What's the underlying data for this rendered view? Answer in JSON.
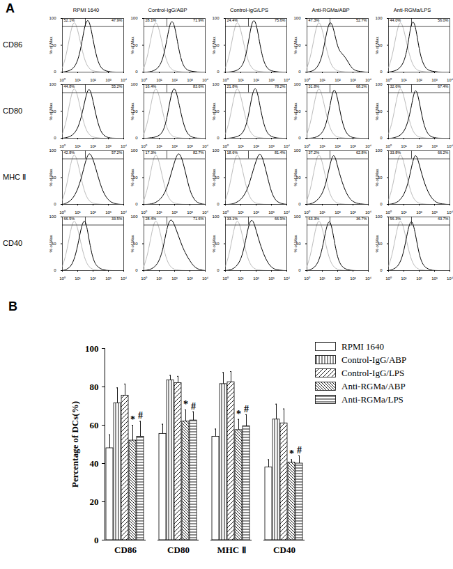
{
  "chart_data": [
    {
      "type": "histogram",
      "panel_label": "A",
      "columns": [
        "RPMI 1640",
        "Control-IgG/ABP",
        "Control-IgG/LPS",
        "Anti-RGMa/ABP",
        "Anti-RGMa/LPS"
      ],
      "x": [
        1,
        1.778,
        3.162,
        5.623,
        10,
        17.78,
        31.62,
        56.23,
        100,
        177.8,
        316.2,
        562.3,
        1000,
        1778,
        3162,
        5623,
        10000
      ],
      "log": "x",
      "xlim": [
        1,
        10000
      ],
      "xticks": [
        {
          "value": 1,
          "label": "10⁰"
        },
        {
          "value": 10,
          "label": "10¹"
        },
        {
          "value": 100,
          "label": "10²"
        },
        {
          "value": 1000,
          "label": "10³"
        },
        {
          "value": 10000,
          "label": "10⁴"
        }
      ],
      "ylim": [
        0,
        100
      ],
      "yticks": [
        0,
        50,
        100
      ],
      "y_label": "% of Max",
      "gate": {
        "x": 31.62,
        "y": 85
      },
      "control": [
        8,
        30,
        70,
        100,
        80,
        45,
        18,
        6,
        2,
        1,
        0,
        0,
        0,
        0,
        0,
        0,
        0
      ],
      "rows": [
        {
          "name": "CD86",
          "panels": [
            {
              "values": [
                0,
                1,
                3,
                8,
                20,
                50,
                95,
                100,
                60,
                25,
                8,
                3,
                1,
                0,
                0,
                0,
                0
              ],
              "percent": [
                52.1,
                47.9
              ],
              "percent_labels": [
                "52.1%",
                "47.9%"
              ]
            },
            {
              "values": [
                0,
                0,
                1,
                4,
                10,
                25,
                60,
                100,
                90,
                45,
                15,
                5,
                2,
                1,
                0,
                0,
                0
              ],
              "percent": [
                28.1,
                71.9
              ],
              "percent_labels": [
                "28.1%",
                "71.9%"
              ]
            },
            {
              "values": [
                0,
                0,
                1,
                3,
                8,
                20,
                55,
                100,
                95,
                50,
                18,
                6,
                2,
                1,
                0,
                0,
                0
              ],
              "percent": [
                24.4,
                75.6
              ],
              "percent_labels": [
                "24.4%",
                "75.6%"
              ]
            },
            {
              "values": [
                0,
                1,
                4,
                12,
                30,
                70,
                100,
                80,
                45,
                35,
                28,
                15,
                5,
                2,
                1,
                0,
                0
              ],
              "percent": [
                47.3,
                52.7
              ],
              "percent_labels": [
                "47.3%",
                "52.7%"
              ]
            },
            {
              "values": [
                0,
                1,
                3,
                8,
                18,
                45,
                100,
                90,
                40,
                15,
                5,
                2,
                1,
                0,
                0,
                0,
                0
              ],
              "percent": [
                44.0,
                56.0
              ],
              "percent_labels": [
                "44.0%",
                "56.0%"
              ]
            }
          ]
        },
        {
          "name": "CD80",
          "panels": [
            {
              "values": [
                0,
                1,
                3,
                8,
                18,
                40,
                75,
                100,
                70,
                35,
                12,
                4,
                1,
                0,
                0,
                0,
                0
              ],
              "percent": [
                44.8,
                55.2
              ],
              "percent_labels": [
                "44.8%",
                "55.2%"
              ]
            },
            {
              "values": [
                0,
                0,
                1,
                2,
                5,
                12,
                35,
                80,
                100,
                70,
                35,
                12,
                4,
                1,
                0,
                0,
                0
              ],
              "percent": [
                16.4,
                83.6
              ],
              "percent_labels": [
                "16.4%",
                "83.6%"
              ]
            },
            {
              "values": [
                0,
                0,
                1,
                3,
                6,
                15,
                40,
                85,
                100,
                60,
                25,
                8,
                3,
                1,
                0,
                0,
                0
              ],
              "percent": [
                21.8,
                78.2
              ],
              "percent_labels": [
                "21.8%",
                "78.2%"
              ]
            },
            {
              "values": [
                0,
                0,
                1,
                4,
                10,
                25,
                60,
                100,
                75,
                35,
                12,
                4,
                1,
                0,
                0,
                0,
                0
              ],
              "percent": [
                31.8,
                68.2
              ],
              "percent_labels": [
                "31.8%",
                "68.2%"
              ]
            },
            {
              "values": [
                0,
                0,
                2,
                5,
                12,
                28,
                60,
                100,
                70,
                30,
                10,
                3,
                1,
                0,
                0,
                0,
                0
              ],
              "percent": [
                32.6,
                67.4
              ],
              "percent_labels": [
                "32.6%",
                "67.4%"
              ]
            }
          ]
        },
        {
          "name": "MHC Ⅱ",
          "panels": [
            {
              "values": [
                0,
                2,
                6,
                14,
                28,
                50,
                80,
                100,
                85,
                60,
                35,
                18,
                8,
                3,
                1,
                0,
                0
              ],
              "percent": [
                42.8,
                57.2
              ],
              "percent_labels": [
                "42.8%",
                "57.2%"
              ]
            },
            {
              "values": [
                0,
                0,
                1,
                3,
                8,
                16,
                30,
                55,
                80,
                100,
                85,
                55,
                25,
                10,
                3,
                1,
                0
              ],
              "percent": [
                17.3,
                82.7
              ],
              "percent_labels": [
                "17.3%",
                "82.7%"
              ]
            },
            {
              "values": [
                0,
                0,
                1,
                4,
                9,
                18,
                33,
                58,
                82,
                100,
                80,
                50,
                22,
                8,
                3,
                1,
                0
              ],
              "percent": [
                18.6,
                81.4
              ],
              "percent_labels": [
                "18.6%",
                "81.4%"
              ]
            },
            {
              "values": [
                0,
                1,
                4,
                10,
                20,
                40,
                75,
                100,
                70,
                45,
                25,
                12,
                5,
                2,
                1,
                0,
                0
              ],
              "percent": [
                37.2,
                62.8
              ],
              "percent_labels": [
                "37.2%",
                "62.8%"
              ]
            },
            {
              "values": [
                0,
                1,
                3,
                8,
                18,
                36,
                70,
                100,
                75,
                48,
                28,
                14,
                6,
                2,
                1,
                0,
                0
              ],
              "percent": [
                33.8,
                66.2
              ],
              "percent_labels": [
                "33.8%",
                "66.2%"
              ]
            }
          ]
        },
        {
          "name": "CD40",
          "panels": [
            {
              "values": [
                0,
                2,
                6,
                18,
                45,
                85,
                100,
                55,
                20,
                8,
                3,
                1,
                0,
                0,
                0,
                0,
                0
              ],
              "percent": [
                66.5,
                33.5
              ],
              "percent_labels": [
                "66.5%",
                "33.5%"
              ]
            },
            {
              "values": [
                0,
                1,
                3,
                8,
                18,
                40,
                80,
                100,
                85,
                65,
                45,
                30,
                18,
                8,
                3,
                1,
                0
              ],
              "percent": [
                28.4,
                71.6
              ],
              "percent_labels": [
                "28.4%",
                "71.6%"
              ]
            },
            {
              "values": [
                0,
                1,
                3,
                9,
                20,
                45,
                85,
                100,
                75,
                50,
                30,
                15,
                6,
                2,
                1,
                0,
                0
              ],
              "percent": [
                33.1,
                66.9
              ],
              "percent_labels": [
                "33.1%",
                "66.9%"
              ]
            },
            {
              "values": [
                0,
                2,
                6,
                16,
                40,
                80,
                100,
                60,
                22,
                8,
                3,
                1,
                0,
                0,
                0,
                0,
                0
              ],
              "percent": [
                63.3,
                36.7
              ],
              "percent_labels": [
                "63.3%",
                "36.7%"
              ]
            },
            {
              "values": [
                0,
                2,
                5,
                14,
                35,
                75,
                100,
                70,
                28,
                10,
                4,
                1,
                0,
                0,
                0,
                0,
                0
              ],
              "percent": [
                56.3,
                43.7
              ],
              "percent_labels": [
                "56.3%",
                "43.7%"
              ]
            }
          ]
        }
      ]
    },
    {
      "type": "bar",
      "panel_label": "B",
      "categories": [
        "CD86",
        "CD80",
        "MHC Ⅱ",
        "CD40"
      ],
      "y_label": "Percentage of DCs(%)",
      "ylim": [
        0,
        100
      ],
      "yticks": [
        0,
        20,
        40,
        60,
        80,
        100
      ],
      "legend": "top-right",
      "series": [
        {
          "name": "RPMI 1640",
          "color": "white",
          "values": [
            48,
            55.5,
            54,
            38
          ],
          "errors": [
            7,
            5,
            4,
            4
          ]
        },
        {
          "name": "Control-IgG/ABP",
          "color": "white",
          "values": [
            71.5,
            83.5,
            81.5,
            63
          ],
          "errors": [
            8,
            2.5,
            6,
            8
          ]
        },
        {
          "name": "Control-IgG/LPS",
          "color": "white",
          "values": [
            75.5,
            82,
            82.5,
            61
          ],
          "errors": [
            6,
            3.5,
            5.5,
            7.5
          ]
        },
        {
          "name": "Anti-RGMa/ABP",
          "color": "white",
          "values": [
            52,
            62,
            57.5,
            40.5
          ],
          "errors": [
            8,
            6,
            5.5,
            1.5
          ],
          "annotation": "*"
        },
        {
          "name": "Anti-RGMa/LPS",
          "color": "white",
          "values": [
            54,
            62.5,
            59.5,
            40
          ],
          "errors": [
            8,
            4.5,
            6,
            4
          ],
          "annotation": "#"
        }
      ]
    }
  ]
}
